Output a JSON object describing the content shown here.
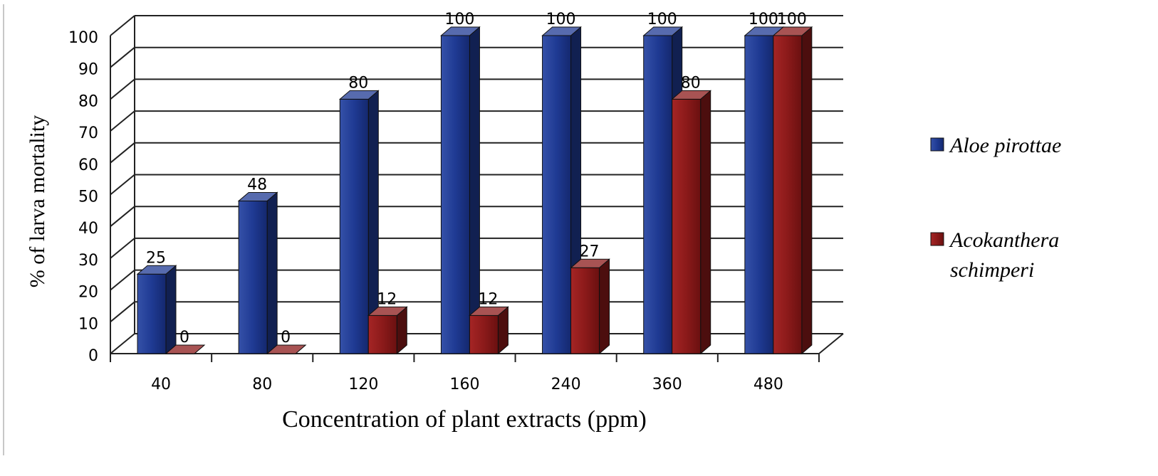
{
  "chart_data": {
    "type": "bar",
    "categories": [
      "40",
      "80",
      "120",
      "160",
      "240",
      "360",
      "480"
    ],
    "series": [
      {
        "name": "Aloe pirottae",
        "values": [
          25,
          48,
          80,
          100,
          100,
          100,
          100
        ],
        "color": "#1f3a93"
      },
      {
        "name": "Acokanthera schimperi",
        "values": [
          0,
          0,
          12,
          12,
          27,
          80,
          100
        ],
        "color": "#8b1a1a"
      }
    ],
    "data_labels": [
      [
        "25",
        "48",
        "80",
        "100",
        "100",
        "100",
        "100"
      ],
      [
        "0",
        "0",
        "12",
        "12",
        "27",
        "80",
        "100"
      ]
    ],
    "legend_lines": [
      [
        "Aloe pirottae"
      ],
      [
        "Acokanthera",
        "schimperi"
      ]
    ],
    "xlabel": "Concentration of plant extracts (ppm)",
    "ylabel": "% of larva mortality",
    "yticks": [
      "0",
      "10",
      "20",
      "30",
      "40",
      "50",
      "60",
      "70",
      "80",
      "90",
      "100"
    ],
    "ylim": [
      0,
      100
    ],
    "grid": true,
    "legend_position": "right"
  }
}
